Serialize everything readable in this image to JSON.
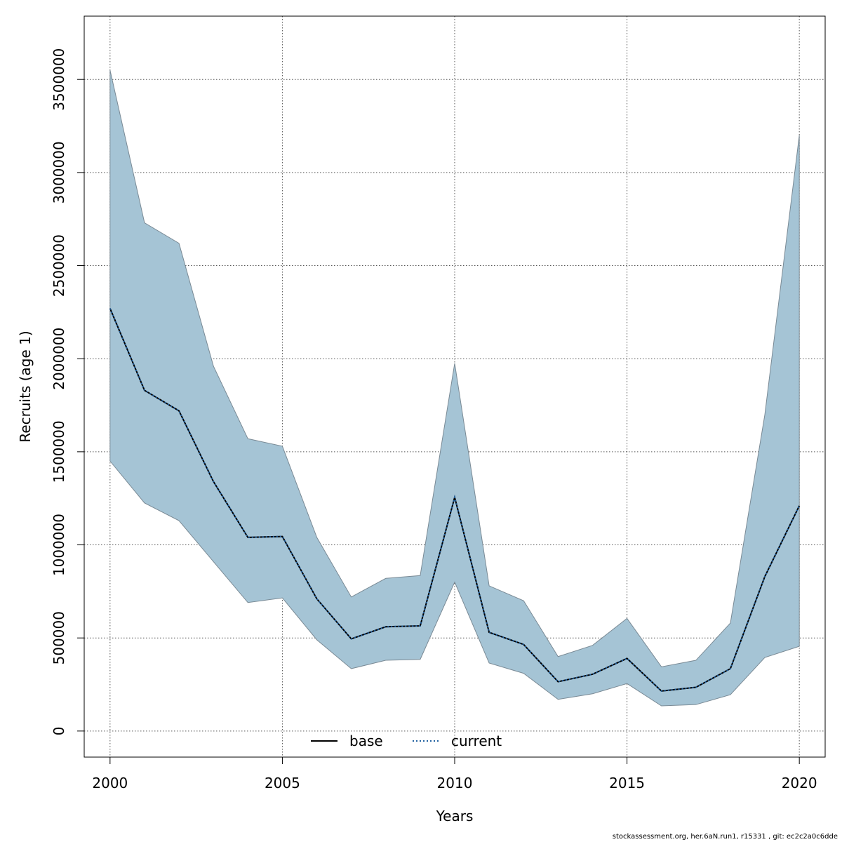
{
  "chart_data": {
    "type": "line",
    "xlabel": "Years",
    "ylabel": "Recruits (age 1)",
    "xlim": [
      1999.25,
      2020.75
    ],
    "ylim": [
      -140000,
      3840000
    ],
    "x_ticks": [
      "2000",
      "2005",
      "2010",
      "2015",
      "2020"
    ],
    "x_tick_values": [
      2000,
      2005,
      2010,
      2015,
      2020
    ],
    "y_ticks": [
      "0",
      "500000",
      "1000000",
      "1500000",
      "2000000",
      "2500000",
      "3000000",
      "3500000"
    ],
    "y_tick_values": [
      0,
      500000,
      1000000,
      1500000,
      2000000,
      2500000,
      3000000,
      3500000
    ],
    "grid": true,
    "legend_position": "bottom-center",
    "x": [
      2000,
      2001,
      2002,
      2003,
      2004,
      2005,
      2006,
      2007,
      2008,
      2009,
      2010,
      2011,
      2012,
      2013,
      2014,
      2015,
      2016,
      2017,
      2018,
      2019,
      2020
    ],
    "band": {
      "color": "#a5c4d5",
      "edge_color": "#7a8a95",
      "lower": [
        1450000,
        1225000,
        1130000,
        910000,
        690000,
        715000,
        490000,
        335000,
        380000,
        385000,
        800000,
        365000,
        310000,
        170000,
        200000,
        255000,
        135000,
        142000,
        195000,
        395000,
        455000
      ],
      "upper": [
        3550000,
        2730000,
        2620000,
        1960000,
        1570000,
        1530000,
        1040000,
        720000,
        820000,
        835000,
        1975000,
        780000,
        700000,
        400000,
        460000,
        605000,
        345000,
        380000,
        580000,
        1700000,
        3200000
      ]
    },
    "series": [
      {
        "name": "base",
        "color": "#000000",
        "style": "solid",
        "values": [
          2270000,
          1830000,
          1720000,
          1340000,
          1040000,
          1045000,
          710000,
          495000,
          560000,
          565000,
          1255000,
          530000,
          465000,
          265000,
          305000,
          390000,
          215000,
          235000,
          335000,
          830000,
          1210000
        ]
      },
      {
        "name": "current",
        "color": "#1f5fa0",
        "style": "dotted",
        "values": [
          2270000,
          1830000,
          1720000,
          1340000,
          1040000,
          1045000,
          710000,
          495000,
          560000,
          565000,
          1255000,
          530000,
          465000,
          265000,
          305000,
          390000,
          215000,
          235000,
          335000,
          830000,
          1210000
        ]
      }
    ]
  },
  "footer": "stockassessment.org, her.6aN.run1, r15331 , git: ec2c2a0c6dde"
}
